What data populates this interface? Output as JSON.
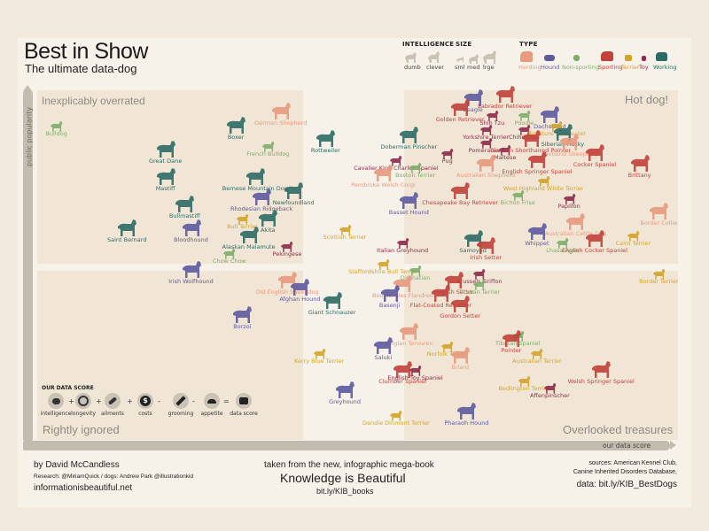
{
  "header": {
    "title": "Best in Show",
    "subtitle": "The ultimate data-dog"
  },
  "legend": {
    "intelligence": {
      "heading": "INTELLIGENCE",
      "items": [
        "dumb",
        "clever"
      ]
    },
    "size": {
      "heading": "SIZE",
      "items": [
        "sml",
        "med",
        "lrge"
      ]
    },
    "type": {
      "heading": "TYPE",
      "items": [
        {
          "label": "Herding",
          "color": "#e89a7e"
        },
        {
          "label": "Hound",
          "color": "#5e5aa0"
        },
        {
          "label": "Non-sporting",
          "color": "#7dae6a"
        },
        {
          "label": "Sporting",
          "color": "#c2413a"
        },
        {
          "label": "Terrier",
          "color": "#d4a427"
        },
        {
          "label": "Toy",
          "color": "#8e2a4a"
        },
        {
          "label": "Working",
          "color": "#2d6b66"
        }
      ]
    }
  },
  "quadrants": {
    "top_left": "Inexplicably overrated",
    "top_right": "Hot dog!",
    "bottom_left": "Rightly ignored",
    "bottom_right": "Overlooked treasures"
  },
  "axes": {
    "y_label": "public popularity",
    "x_label": "our data score"
  },
  "data_score": {
    "heading": "OUR DATA SCORE",
    "terms": [
      {
        "label": "intelligence",
        "op": "+"
      },
      {
        "label": "longevity",
        "op": "+"
      },
      {
        "label": "ailments",
        "op": "+"
      },
      {
        "label": "costs",
        "op": "-"
      },
      {
        "label": "grooming",
        "op": "-"
      },
      {
        "label": "appetite",
        "op": "="
      },
      {
        "label": "data score",
        "op": ""
      }
    ]
  },
  "footer": {
    "author": "by David McCandless",
    "credits": "Research: @MiriamQuick / dogs: Andrew Park @illustrationkid",
    "site": "informationisbeautiful.net",
    "book_intro": "taken from the new, infographic mega-book",
    "book_title": "Knowledge is Beautiful",
    "book_link": "bit.ly/KIB_books",
    "sources_line1": "sources: American Kennel Club,",
    "sources_line2": "Canine Inherited Disorders Database,",
    "data_link": "data: bit.ly/KIB_BestDogs"
  },
  "chart_data": {
    "type": "scatter",
    "title": "Best in Show",
    "subtitle": "The ultimate data-dog",
    "xlabel": "our data score",
    "ylabel": "public popularity",
    "quadrant_labels": [
      "Inexplicably overrated",
      "Hot dog!",
      "Rightly ignored",
      "Overlooked treasures"
    ],
    "legend_position": "top-right",
    "grid": false,
    "note": "x/y are approximate pixel-relative positions (0-100) read from the plot area; higher y = more popular, higher x = better data score",
    "series": [
      {
        "name": "Bulldog",
        "type": "Non-sporting",
        "x": 3,
        "y": 90
      },
      {
        "name": "Great Dane",
        "type": "Working",
        "x": 20,
        "y": 82
      },
      {
        "name": "Mastiff",
        "type": "Working",
        "x": 20,
        "y": 74
      },
      {
        "name": "Bullmastiff",
        "type": "Working",
        "x": 23,
        "y": 66
      },
      {
        "name": "Saint Bernard",
        "type": "Working",
        "x": 14,
        "y": 59
      },
      {
        "name": "Bloodhound",
        "type": "Hound",
        "x": 24,
        "y": 59
      },
      {
        "name": "Boxer",
        "type": "Working",
        "x": 31,
        "y": 89
      },
      {
        "name": "German Shepherd",
        "type": "Herding",
        "x": 38,
        "y": 93
      },
      {
        "name": "French Bulldog",
        "type": "Non-sporting",
        "x": 36,
        "y": 84
      },
      {
        "name": "Bernese Mountain Dog",
        "type": "Working",
        "x": 34,
        "y": 74
      },
      {
        "name": "Rhodesian Ridgeback",
        "type": "Hound",
        "x": 35,
        "y": 68
      },
      {
        "name": "Newfoundland",
        "type": "Working",
        "x": 40,
        "y": 70
      },
      {
        "name": "Bull Terrier",
        "type": "Terrier",
        "x": 32,
        "y": 63
      },
      {
        "name": "Akita",
        "type": "Working",
        "x": 36,
        "y": 62
      },
      {
        "name": "Alaskan Malamute",
        "type": "Working",
        "x": 33,
        "y": 57
      },
      {
        "name": "Chow Chow",
        "type": "Non-sporting",
        "x": 30,
        "y": 53
      },
      {
        "name": "Pekingese",
        "type": "Toy",
        "x": 39,
        "y": 55
      },
      {
        "name": "Rottweiler",
        "type": "Working",
        "x": 45,
        "y": 85
      },
      {
        "name": "Doberman Pinscher",
        "type": "Working",
        "x": 58,
        "y": 86
      },
      {
        "name": "Cavalier King Charles Spaniel",
        "type": "Toy",
        "x": 56,
        "y": 80
      },
      {
        "name": "Boston Terrier",
        "type": "Non-sporting",
        "x": 59,
        "y": 78
      },
      {
        "name": "Pembroke Welsh Corgi",
        "type": "Herding",
        "x": 54,
        "y": 75
      },
      {
        "name": "Basset Hound",
        "type": "Hound",
        "x": 58,
        "y": 67
      },
      {
        "name": "Scottish Terrier",
        "type": "Terrier",
        "x": 48,
        "y": 60
      },
      {
        "name": "Beagle",
        "type": "Hound",
        "x": 68,
        "y": 97
      },
      {
        "name": "Labrador Retriever",
        "type": "Sporting",
        "x": 73,
        "y": 98
      },
      {
        "name": "Golden Retriever",
        "type": "Sporting",
        "x": 66,
        "y": 94
      },
      {
        "name": "Shih Tzu",
        "type": "Toy",
        "x": 71,
        "y": 93
      },
      {
        "name": "Yorkshire Terrier",
        "type": "Toy",
        "x": 70,
        "y": 89
      },
      {
        "name": "Pomeranian",
        "type": "Toy",
        "x": 70,
        "y": 85
      },
      {
        "name": "Pug",
        "type": "Toy",
        "x": 64,
        "y": 82
      },
      {
        "name": "Maltese",
        "type": "Toy",
        "x": 73,
        "y": 83
      },
      {
        "name": "Australian Shepherd",
        "type": "Herding",
        "x": 70,
        "y": 78
      },
      {
        "name": "Chesapeake Bay Retriever",
        "type": "Sporting",
        "x": 66,
        "y": 70
      },
      {
        "name": "Poodle",
        "type": "Non-sporting",
        "x": 76,
        "y": 93
      },
      {
        "name": "Chihuahua",
        "type": "Toy",
        "x": 76,
        "y": 89
      },
      {
        "name": "Dachshund",
        "type": "Hound",
        "x": 80,
        "y": 92
      },
      {
        "name": "Miniature Schnauzer",
        "type": "Terrier",
        "x": 81,
        "y": 90
      },
      {
        "name": "Siberian Husky",
        "type": "Working",
        "x": 82,
        "y": 87
      },
      {
        "name": "German Shorthaired Pointer",
        "type": "Sporting",
        "x": 77,
        "y": 85
      },
      {
        "name": "Shetland Sheepdog",
        "type": "Herding",
        "x": 83,
        "y": 84
      },
      {
        "name": "English Springer Spaniel",
        "type": "Sporting",
        "x": 78,
        "y": 79
      },
      {
        "name": "Cocker Spaniel",
        "type": "Sporting",
        "x": 87,
        "y": 81
      },
      {
        "name": "West Highland White Terrier",
        "type": "Terrier",
        "x": 79,
        "y": 74
      },
      {
        "name": "Bichon Frise",
        "type": "Non-sporting",
        "x": 75,
        "y": 70
      },
      {
        "name": "Papillon",
        "type": "Toy",
        "x": 83,
        "y": 69
      },
      {
        "name": "Brittany",
        "type": "Sporting",
        "x": 94,
        "y": 78
      },
      {
        "name": "Border Collie",
        "type": "Herding",
        "x": 97,
        "y": 64
      },
      {
        "name": "Australian Cattle Dog",
        "type": "Herding",
        "x": 84,
        "y": 61
      },
      {
        "name": "Whippet",
        "type": "Hound",
        "x": 78,
        "y": 58
      },
      {
        "name": "Lhasa Apso",
        "type": "Non-sporting",
        "x": 82,
        "y": 56
      },
      {
        "name": "English Cocker Spaniel",
        "type": "Sporting",
        "x": 87,
        "y": 56
      },
      {
        "name": "Cairn Terrier",
        "type": "Terrier",
        "x": 93,
        "y": 58
      },
      {
        "name": "Italian Greyhound",
        "type": "Toy",
        "x": 57,
        "y": 56
      },
      {
        "name": "Samoyed",
        "type": "Working",
        "x": 68,
        "y": 56
      },
      {
        "name": "Irish Setter",
        "type": "Sporting",
        "x": 70,
        "y": 54
      },
      {
        "name": "Staffordshire Bull Terrier",
        "type": "Terrier",
        "x": 54,
        "y": 50
      },
      {
        "name": "Irish Wolfhound",
        "type": "Hound",
        "x": 24,
        "y": 47
      },
      {
        "name": "Borzoi",
        "type": "Hound",
        "x": 32,
        "y": 34
      },
      {
        "name": "Old English Sheepdog",
        "type": "Herding",
        "x": 39,
        "y": 44
      },
      {
        "name": "Afghan Hound",
        "type": "Hound",
        "x": 41,
        "y": 42
      },
      {
        "name": "Giant Schnauzer",
        "type": "Working",
        "x": 46,
        "y": 38
      },
      {
        "name": "Kerry Blue Terrier",
        "type": "Terrier",
        "x": 44,
        "y": 24
      },
      {
        "name": "Dalmatian",
        "type": "Non-sporting",
        "x": 59,
        "y": 48
      },
      {
        "name": "Bouvier des Flandres",
        "type": "Herding",
        "x": 57,
        "y": 43
      },
      {
        "name": "Brussels Griffon",
        "type": "Toy",
        "x": 69,
        "y": 47
      },
      {
        "name": "English Setter",
        "type": "Sporting",
        "x": 65,
        "y": 44
      },
      {
        "name": "Tibetan Terrier",
        "type": "Non-sporting",
        "x": 69,
        "y": 44
      },
      {
        "name": "Flat-Coated Retriever",
        "type": "Sporting",
        "x": 63,
        "y": 40
      },
      {
        "name": "Basenji",
        "type": "Hound",
        "x": 55,
        "y": 40
      },
      {
        "name": "Gordon Setter",
        "type": "Sporting",
        "x": 66,
        "y": 37
      },
      {
        "name": "Belgian Tervuren",
        "type": "Herding",
        "x": 58,
        "y": 29
      },
      {
        "name": "Saluki",
        "type": "Hound",
        "x": 54,
        "y": 25
      },
      {
        "name": "Norfolk Terrier",
        "type": "Terrier",
        "x": 64,
        "y": 26
      },
      {
        "name": "Briard",
        "type": "Herding",
        "x": 66,
        "y": 22
      },
      {
        "name": "Clumber Spaniel",
        "type": "Sporting",
        "x": 57,
        "y": 18
      },
      {
        "name": "English Toy Spaniel",
        "type": "Toy",
        "x": 59,
        "y": 19
      },
      {
        "name": "Greyhound",
        "type": "Hound",
        "x": 48,
        "y": 12
      },
      {
        "name": "Dandie Dinmont Terrier",
        "type": "Terrier",
        "x": 56,
        "y": 6
      },
      {
        "name": "Pharaoh Hound",
        "type": "Hound",
        "x": 67,
        "y": 6
      },
      {
        "name": "Tibetan Spaniel",
        "type": "Non-sporting",
        "x": 75,
        "y": 29
      },
      {
        "name": "Pointer",
        "type": "Sporting",
        "x": 74,
        "y": 27
      },
      {
        "name": "Australian Terrier",
        "type": "Terrier",
        "x": 78,
        "y": 24
      },
      {
        "name": "Bedlington Terrier",
        "type": "Terrier",
        "x": 76,
        "y": 16
      },
      {
        "name": "Affenpinscher",
        "type": "Toy",
        "x": 80,
        "y": 14
      },
      {
        "name": "Welsh Springer Spaniel",
        "type": "Sporting",
        "x": 88,
        "y": 18
      },
      {
        "name": "Border Terrier",
        "type": "Terrier",
        "x": 97,
        "y": 47
      }
    ]
  }
}
